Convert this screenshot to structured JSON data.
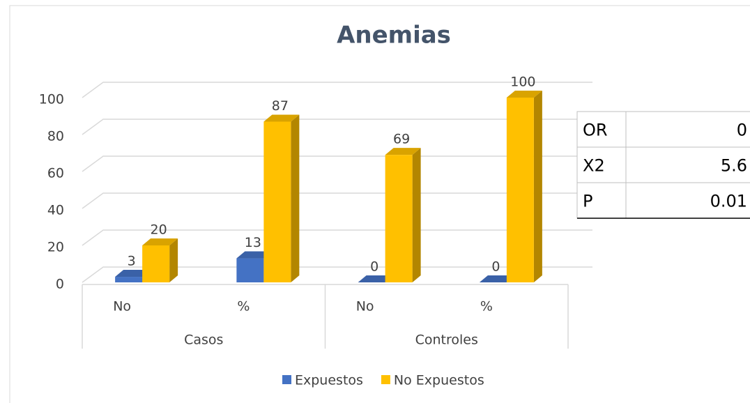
{
  "chart_data": {
    "type": "bar3d",
    "title": "Anemias",
    "categories": [
      "No",
      "%",
      "No",
      "%"
    ],
    "groups": [
      "Casos",
      "Controles"
    ],
    "series": [
      {
        "name": "Expuestos",
        "color": "#4472c4",
        "values": [
          3,
          13,
          0,
          0
        ]
      },
      {
        "name": "No Expuestos",
        "color": "#ffc000",
        "values": [
          20,
          87,
          69,
          100
        ]
      }
    ],
    "ylim": [
      0,
      100
    ],
    "yticks": [
      0,
      20,
      40,
      60,
      80,
      100
    ],
    "grid": true,
    "legend": "bottom"
  },
  "table": {
    "rows": [
      [
        "OR",
        0
      ],
      [
        "X2",
        5.6
      ],
      [
        "P",
        0.01
      ]
    ]
  }
}
